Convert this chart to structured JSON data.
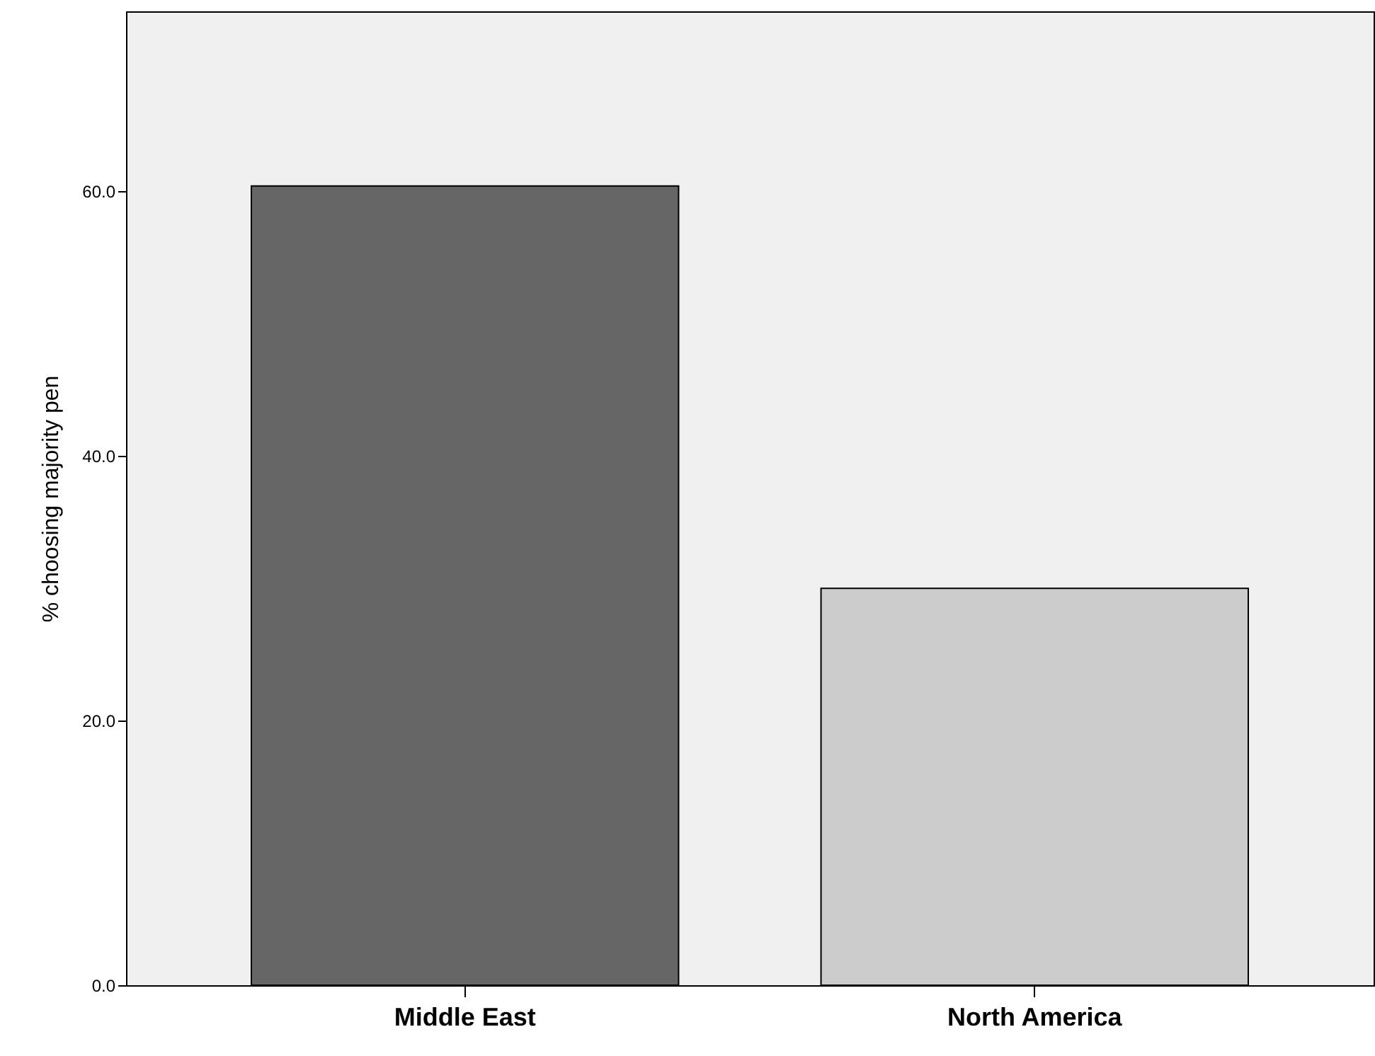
{
  "chart_data": {
    "type": "bar",
    "ylabel": "% choosing majority pen",
    "categories": [
      "Middle East",
      "North America"
    ],
    "values": [
      60.4,
      30.0
    ],
    "colors": [
      "#666666",
      "#cccccc"
    ],
    "ylim": [
      0,
      73.6
    ],
    "yticks": [
      {
        "value": 0,
        "label": "0.0"
      },
      {
        "value": 20,
        "label": "20.0"
      },
      {
        "value": 40,
        "label": "40.0"
      },
      {
        "value": 60,
        "label": "60.0"
      }
    ],
    "grid": false
  }
}
